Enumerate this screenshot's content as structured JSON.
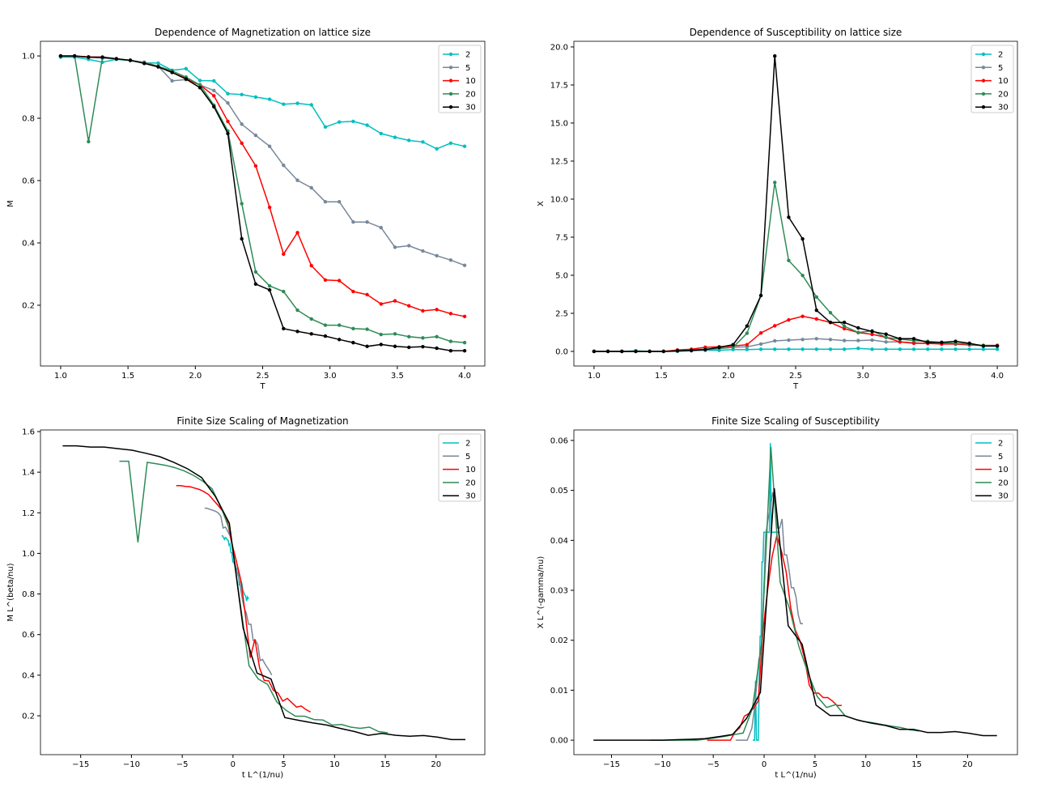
{
  "chart_data": [
    {
      "type": "line",
      "title": "Dependence of Magnetization on lattice size",
      "xlabel": "T",
      "ylabel": "M",
      "xlim": [
        0.85,
        4.15
      ],
      "ylim": [
        0.005,
        1.047
      ],
      "xticks": [
        1.0,
        1.5,
        2.0,
        2.5,
        3.0,
        3.5,
        4.0
      ],
      "xtick_labels": [
        "1.0",
        "1.5",
        "2.0",
        "2.5",
        "3.0",
        "3.5",
        "4.0"
      ],
      "yticks": [
        0.2,
        0.4,
        0.6,
        0.8,
        1.0
      ],
      "ytick_labels": [
        "0.2",
        "0.4",
        "0.6",
        "0.8",
        "1.0"
      ],
      "markers": true,
      "legend": "top-right",
      "x": "linspace(1,4,30)",
      "series": [
        {
          "name": "2",
          "color": "#00bfbf",
          "values": [
            0.996,
            0.996,
            0.989,
            0.98,
            0.989,
            0.985,
            0.978,
            0.977,
            0.954,
            0.959,
            0.921,
            0.92,
            0.879,
            0.876,
            0.868,
            0.861,
            0.845,
            0.848,
            0.843,
            0.772,
            0.788,
            0.79,
            0.778,
            0.751,
            0.739,
            0.729,
            0.724,
            0.702,
            0.72,
            0.71
          ]
        },
        {
          "name": "5",
          "color": "#778899",
          "values": [
            1.0,
            1.0,
            0.996,
            0.993,
            0.99,
            0.986,
            0.98,
            0.967,
            0.92,
            0.924,
            0.907,
            0.889,
            0.849,
            0.781,
            0.745,
            0.71,
            0.649,
            0.601,
            0.577,
            0.532,
            0.532,
            0.467,
            0.467,
            0.449,
            0.386,
            0.391,
            0.374,
            0.359,
            0.345,
            0.328
          ]
        },
        {
          "name": "10",
          "color": "#ff0000",
          "values": [
            1.0,
            1.0,
            0.997,
            0.996,
            0.991,
            0.986,
            0.978,
            0.967,
            0.947,
            0.928,
            0.907,
            0.872,
            0.79,
            0.72,
            0.647,
            0.514,
            0.364,
            0.433,
            0.327,
            0.281,
            0.279,
            0.244,
            0.234,
            0.204,
            0.214,
            0.198,
            0.182,
            0.186,
            0.173,
            0.164
          ]
        },
        {
          "name": "20",
          "color": "#2e8b57",
          "values": [
            1.0,
            1.0,
            0.725,
            0.996,
            0.991,
            0.986,
            0.978,
            0.967,
            0.952,
            0.932,
            0.907,
            0.842,
            0.759,
            0.526,
            0.307,
            0.262,
            0.244,
            0.184,
            0.156,
            0.136,
            0.136,
            0.125,
            0.123,
            0.106,
            0.108,
            0.099,
            0.095,
            0.099,
            0.084,
            0.08
          ]
        },
        {
          "name": "30",
          "color": "#000000",
          "values": [
            1.0,
            1.0,
            0.996,
            0.996,
            0.991,
            0.986,
            0.976,
            0.965,
            0.947,
            0.926,
            0.898,
            0.837,
            0.751,
            0.413,
            0.268,
            0.249,
            0.125,
            0.116,
            0.108,
            0.101,
            0.09,
            0.08,
            0.068,
            0.074,
            0.068,
            0.065,
            0.067,
            0.062,
            0.054,
            0.054
          ]
        }
      ]
    },
    {
      "type": "line",
      "title": "Dependence of Susceptibility on lattice size",
      "xlabel": "T",
      "ylabel": "X",
      "xlim": [
        0.85,
        4.15
      ],
      "ylim": [
        -0.96,
        20.37
      ],
      "xticks": [
        1.0,
        1.5,
        2.0,
        2.5,
        3.0,
        3.5,
        4.0
      ],
      "xtick_labels": [
        "1.0",
        "1.5",
        "2.0",
        "2.5",
        "3.0",
        "3.5",
        "4.0"
      ],
      "yticks": [
        0,
        2.5,
        5,
        7.5,
        10,
        12.5,
        15,
        17.5,
        20
      ],
      "ytick_labels": [
        "0.0",
        "2.5",
        "5.0",
        "7.5",
        "10.0",
        "12.5",
        "15.0",
        "17.5",
        "20.0"
      ],
      "markers": true,
      "legend": "top-right",
      "x": "linspace(1,4,30)",
      "series": [
        {
          "name": "2",
          "color": "#00bfbf",
          "values": [
            0,
            0,
            0,
            0.04,
            0,
            0,
            0,
            0.04,
            0.07,
            0.07,
            0.12,
            0.12,
            0.14,
            0.14,
            0.14,
            0.14,
            0.14,
            0.14,
            0.14,
            0.2,
            0.14,
            0.14,
            0.14,
            0.14,
            0.14,
            0.14,
            0.14,
            0.14,
            0.14,
            0.14
          ]
        },
        {
          "name": "5",
          "color": "#778899",
          "values": [
            0,
            0,
            0,
            0,
            0,
            0,
            0.02,
            0.04,
            0.1,
            0.18,
            0.27,
            0.3,
            0.48,
            0.69,
            0.74,
            0.78,
            0.83,
            0.78,
            0.71,
            0.71,
            0.74,
            0.62,
            0.62,
            0.57,
            0.51,
            0.51,
            0.48,
            0.42,
            0.39,
            0.39
          ]
        },
        {
          "name": "10",
          "color": "#ff0000",
          "values": [
            0,
            0,
            0,
            0,
            0,
            0,
            0.09,
            0.14,
            0.27,
            0.3,
            0.36,
            0.44,
            1.21,
            1.68,
            2.07,
            2.3,
            2.13,
            1.9,
            1.49,
            1.24,
            1.12,
            0.92,
            0.62,
            0.53,
            0.53,
            0.48,
            0.48,
            0.44,
            0.39,
            0.39
          ]
        },
        {
          "name": "20",
          "color": "#2e8b57",
          "values": [
            0,
            0,
            0,
            0,
            0,
            0,
            0.04,
            0.09,
            0.14,
            0.21,
            0.27,
            1.19,
            3.67,
            11.1,
            5.97,
            4.99,
            3.57,
            2.54,
            1.65,
            1.24,
            1.35,
            0.92,
            0.8,
            0.71,
            0.66,
            0.59,
            0.53,
            0.48,
            0.39,
            0.35
          ]
        },
        {
          "name": "30",
          "color": "#000000",
          "values": [
            0,
            0,
            0,
            0,
            0,
            0,
            0.04,
            0.07,
            0.12,
            0.27,
            0.44,
            1.67,
            3.67,
            19.4,
            8.81,
            7.39,
            2.7,
            1.9,
            1.9,
            1.54,
            1.31,
            1.13,
            0.83,
            0.83,
            0.59,
            0.59,
            0.66,
            0.53,
            0.35,
            0.35
          ]
        }
      ]
    },
    {
      "type": "line",
      "title": "Finite Size Scaling of Magnetization",
      "xlabel": "t L^(1/nu)",
      "ylabel": "M L^(beta/nu)",
      "xlim": [
        -18.96,
        24.8
      ],
      "ylim": [
        0.0085,
        1.608
      ],
      "xticks": [
        -15,
        -10,
        -5,
        0,
        5,
        10,
        15,
        20
      ],
      "xtick_labels": [
        "−15",
        "−10",
        "−5",
        "0",
        "5",
        "10",
        "15",
        "20"
      ],
      "yticks": [
        0.2,
        0.4,
        0.6,
        0.8,
        1.0,
        1.2,
        1.4,
        1.6
      ],
      "ytick_labels": [
        "0.2",
        "0.4",
        "0.6",
        "0.8",
        "1.0",
        "1.2",
        "1.4",
        "1.6"
      ],
      "markers": false,
      "legend": "top-right",
      "scaling": {
        "source": 0,
        "Tc": 2.269,
        "nu": 1,
        "y_exponent": 0.125
      }
    },
    {
      "type": "line",
      "title": "Finite Size Scaling of Susceptibility",
      "xlabel": "t L^(1/nu)",
      "ylabel": "X L^(-gamma/nu)",
      "xlim": [
        -18.7,
        24.9
      ],
      "ylim": [
        -0.0029,
        0.0621
      ],
      "xticks": [
        -15,
        -10,
        -5,
        0,
        5,
        10,
        15,
        20
      ],
      "xtick_labels": [
        "−15",
        "−10",
        "−5",
        "0",
        "5",
        "10",
        "15",
        "20"
      ],
      "yticks": [
        0,
        0.01,
        0.02,
        0.03,
        0.04,
        0.05,
        0.06
      ],
      "ytick_labels": [
        "0.00",
        "0.01",
        "0.02",
        "0.03",
        "0.04",
        "0.05",
        "0.06"
      ],
      "markers": false,
      "legend": "top-right",
      "scaling": {
        "source": 1,
        "Tc": 2.269,
        "nu": 1,
        "y_exponent": -1.75
      }
    }
  ]
}
